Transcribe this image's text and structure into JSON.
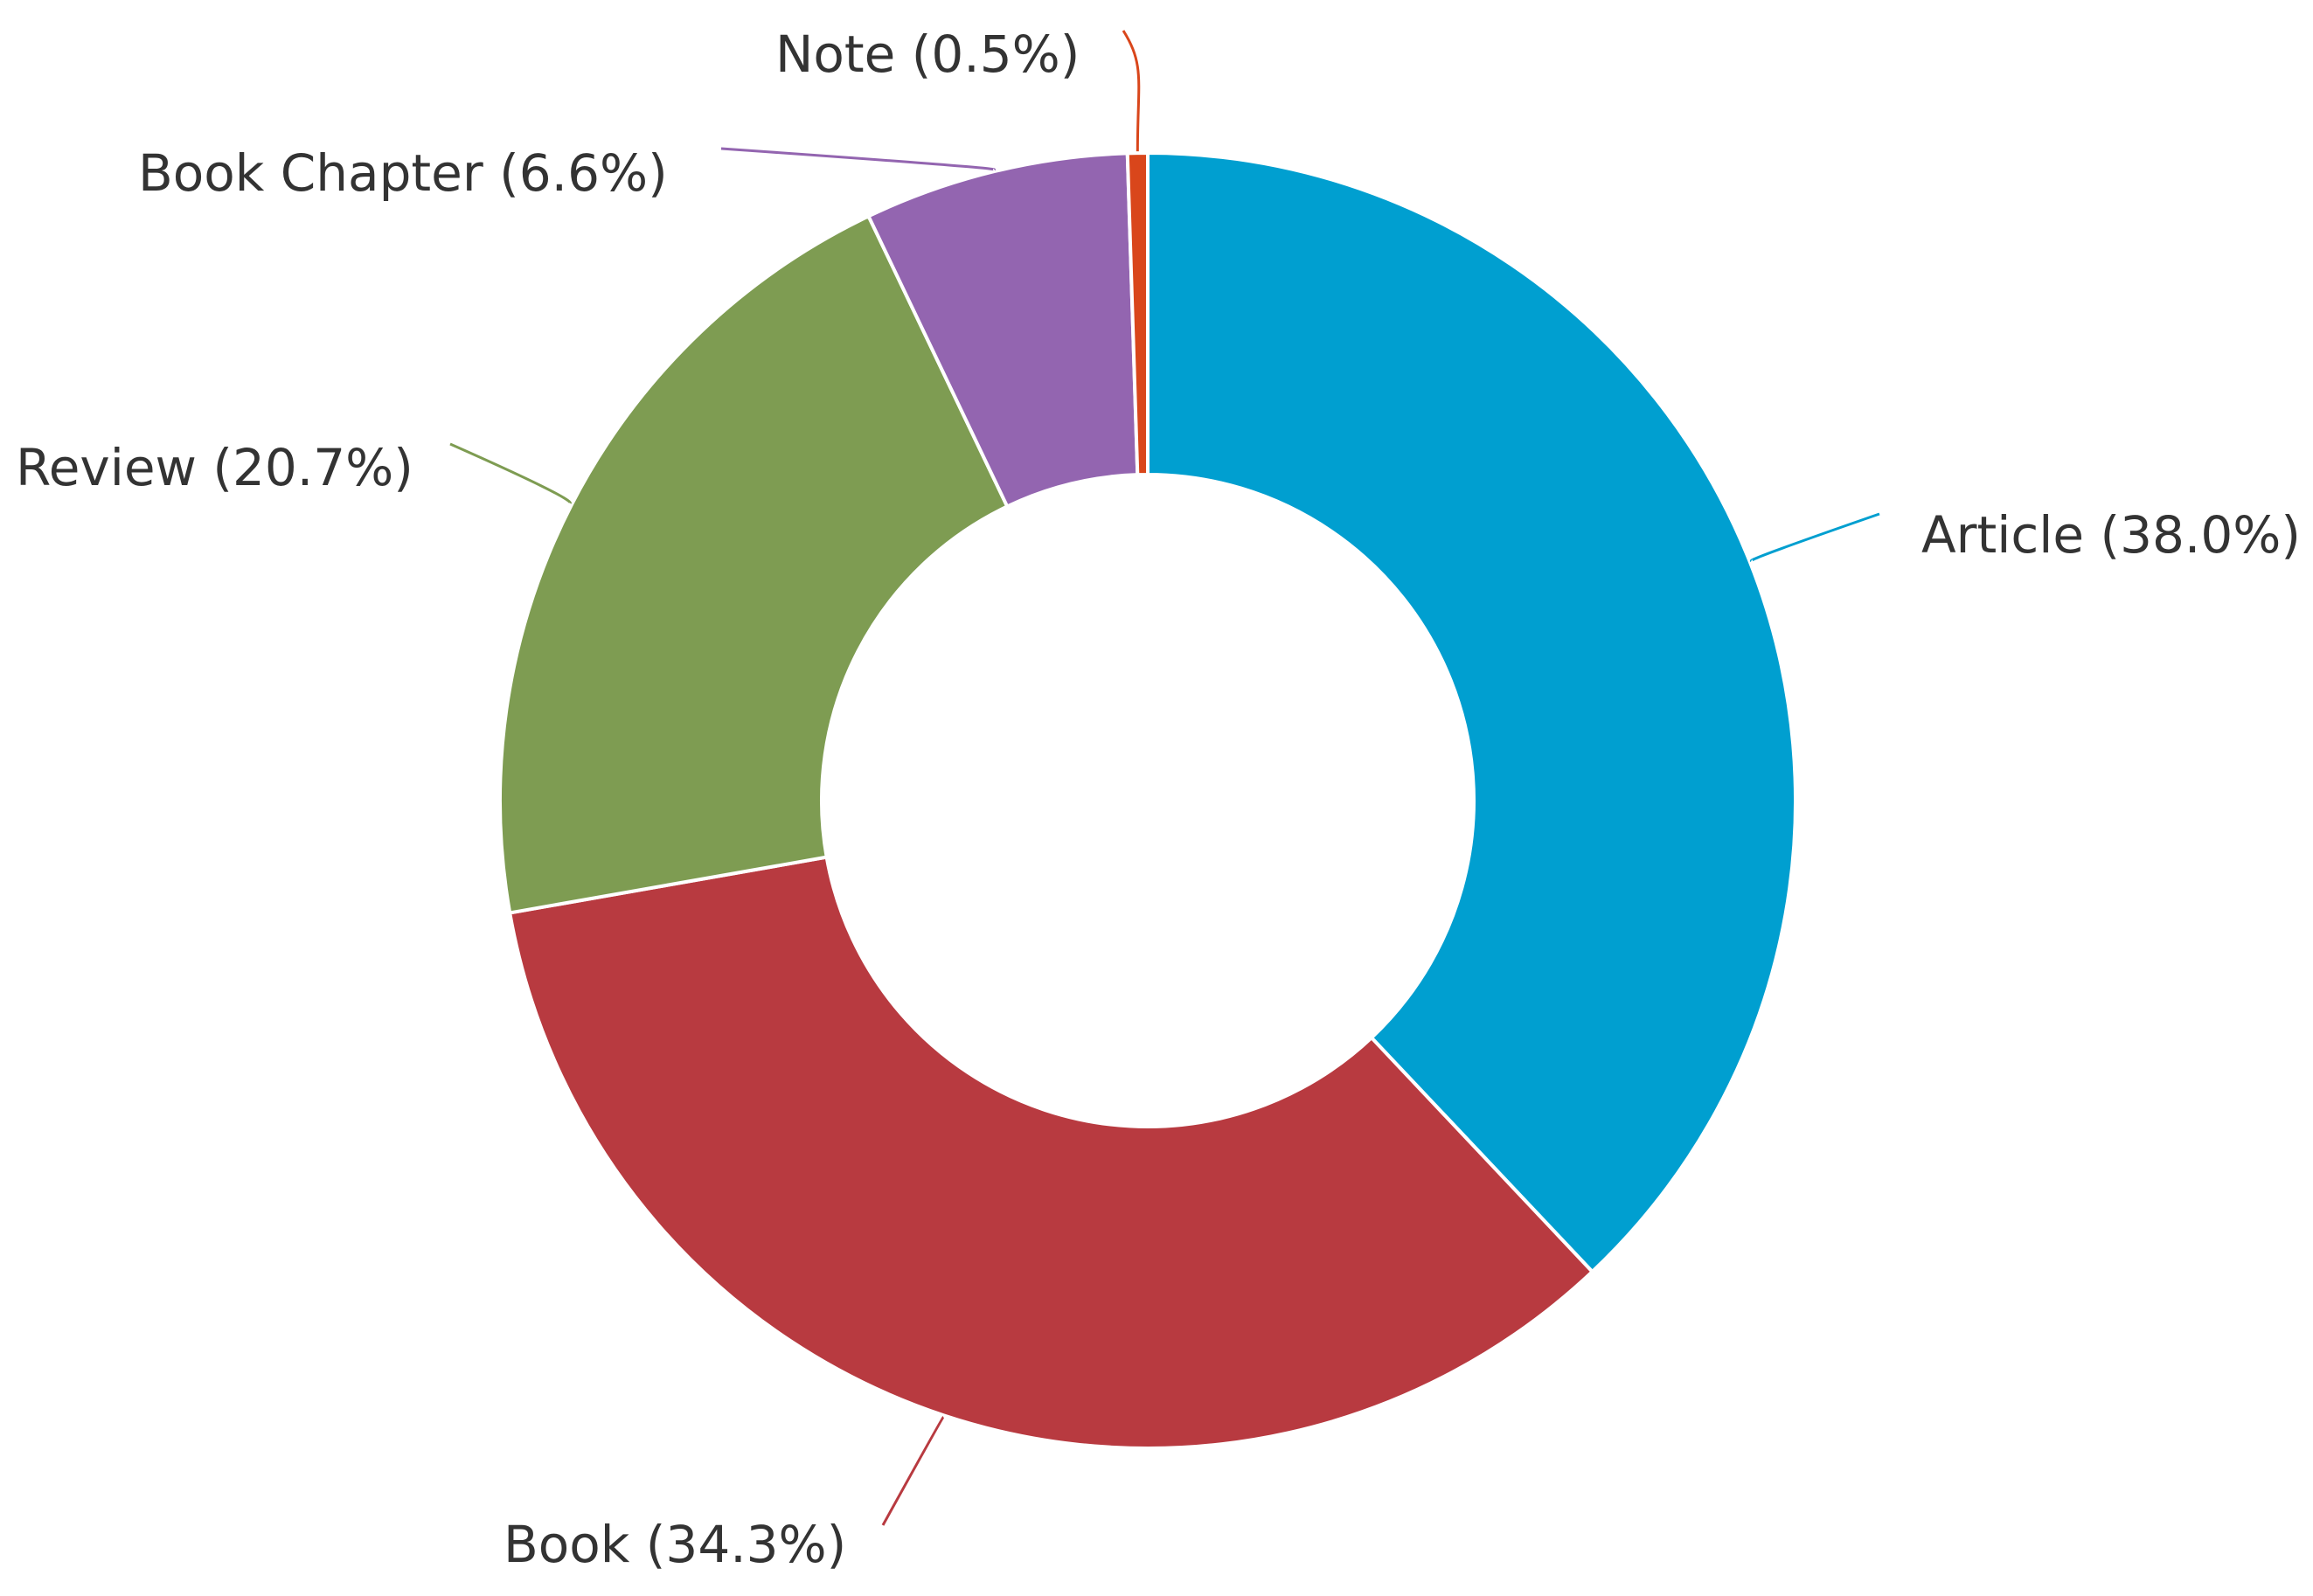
{
  "chart_data": {
    "type": "pie",
    "donut": true,
    "title": "",
    "direction": "clockwise",
    "start_angle_deg": 0,
    "slices": [
      {
        "name": "Article",
        "value": 38.0,
        "label": "Article (38.0%)",
        "color": "#009fd0"
      },
      {
        "name": "Book",
        "value": 34.3,
        "label": "Book (34.3%)",
        "color": "#b83a40"
      },
      {
        "name": "Review",
        "value": 20.7,
        "label": "Review (20.7%)",
        "color": "#7e9c52"
      },
      {
        "name": "Book Chapter",
        "value": 6.6,
        "label": "Book Chapter (6.6%)",
        "color": "#9365b0"
      },
      {
        "name": "Note",
        "value": 0.5,
        "label": "Note (0.5%)",
        "color": "#d9461b"
      }
    ],
    "legend": "none",
    "label_style": "outside-with-leader-lines"
  }
}
